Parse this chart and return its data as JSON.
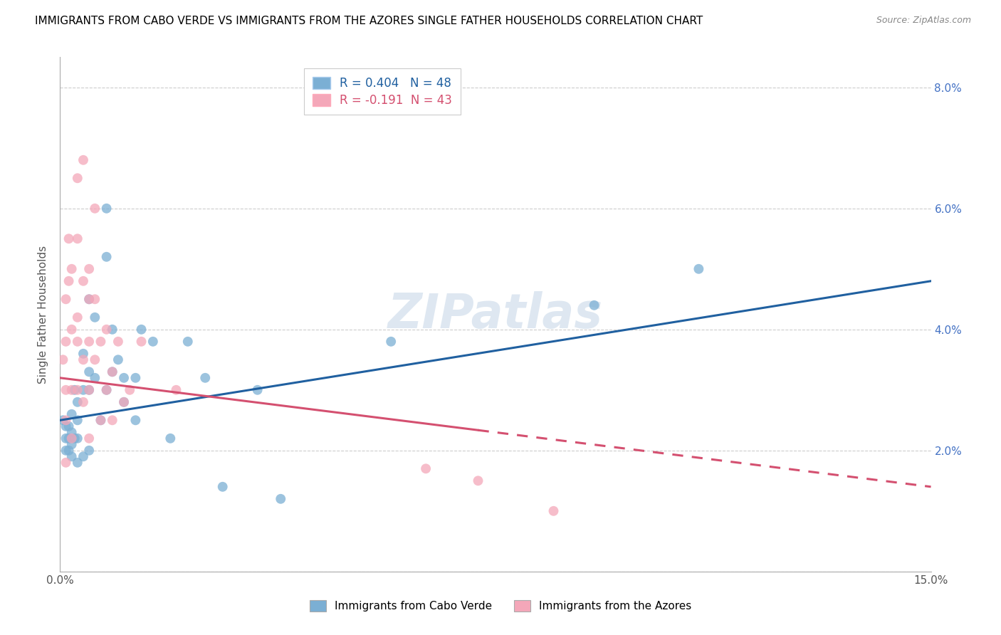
{
  "title": "IMMIGRANTS FROM CABO VERDE VS IMMIGRANTS FROM THE AZORES SINGLE FATHER HOUSEHOLDS CORRELATION CHART",
  "source": "Source: ZipAtlas.com",
  "ylabel": "Single Father Households",
  "x_min": 0.0,
  "x_max": 0.15,
  "y_min": 0.0,
  "y_max": 0.085,
  "x_ticks": [
    0.0,
    0.03,
    0.06,
    0.09,
    0.12,
    0.15
  ],
  "x_tick_labels": [
    "0.0%",
    "",
    "",
    "",
    "",
    "15.0%"
  ],
  "y_ticks": [
    0.0,
    0.02,
    0.04,
    0.06,
    0.08
  ],
  "y_tick_labels": [
    "",
    "2.0%",
    "4.0%",
    "6.0%",
    "8.0%"
  ],
  "cabo_verde_color": "#7bafd4",
  "azores_color": "#f4a7b9",
  "cabo_verde_line_color": "#2060a0",
  "azores_line_color": "#d45070",
  "cabo_verde_R": 0.404,
  "cabo_verde_N": 48,
  "azores_R": -0.191,
  "azores_N": 43,
  "legend_label_1": "Immigrants from Cabo Verde",
  "legend_label_2": "Immigrants from the Azores",
  "watermark": "ZIPatlas",
  "cabo_verde_line": [
    0.0,
    0.025,
    0.15,
    0.048
  ],
  "azores_line_solid_end": 0.072,
  "azores_line": [
    0.0,
    0.032,
    0.15,
    0.014
  ],
  "cabo_verde_x": [
    0.0005,
    0.001,
    0.001,
    0.001,
    0.0015,
    0.0015,
    0.0015,
    0.002,
    0.002,
    0.002,
    0.002,
    0.0025,
    0.0025,
    0.003,
    0.003,
    0.003,
    0.003,
    0.004,
    0.004,
    0.004,
    0.005,
    0.005,
    0.005,
    0.005,
    0.006,
    0.006,
    0.007,
    0.008,
    0.008,
    0.008,
    0.009,
    0.009,
    0.01,
    0.011,
    0.011,
    0.013,
    0.013,
    0.014,
    0.016,
    0.019,
    0.022,
    0.025,
    0.028,
    0.034,
    0.038,
    0.057,
    0.092,
    0.11
  ],
  "cabo_verde_y": [
    0.025,
    0.024,
    0.022,
    0.02,
    0.024,
    0.022,
    0.02,
    0.026,
    0.023,
    0.021,
    0.019,
    0.03,
    0.022,
    0.028,
    0.025,
    0.022,
    0.018,
    0.036,
    0.03,
    0.019,
    0.045,
    0.033,
    0.03,
    0.02,
    0.042,
    0.032,
    0.025,
    0.06,
    0.052,
    0.03,
    0.04,
    0.033,
    0.035,
    0.032,
    0.028,
    0.032,
    0.025,
    0.04,
    0.038,
    0.022,
    0.038,
    0.032,
    0.014,
    0.03,
    0.012,
    0.038,
    0.044,
    0.05
  ],
  "azores_x": [
    0.0005,
    0.001,
    0.001,
    0.001,
    0.001,
    0.001,
    0.0015,
    0.0015,
    0.002,
    0.002,
    0.002,
    0.002,
    0.003,
    0.003,
    0.003,
    0.003,
    0.003,
    0.004,
    0.004,
    0.004,
    0.004,
    0.005,
    0.005,
    0.005,
    0.005,
    0.005,
    0.006,
    0.006,
    0.006,
    0.007,
    0.007,
    0.008,
    0.008,
    0.009,
    0.009,
    0.01,
    0.011,
    0.012,
    0.014,
    0.02,
    0.063,
    0.072,
    0.085
  ],
  "azores_y": [
    0.035,
    0.045,
    0.038,
    0.03,
    0.025,
    0.018,
    0.055,
    0.048,
    0.05,
    0.04,
    0.03,
    0.022,
    0.065,
    0.055,
    0.042,
    0.038,
    0.03,
    0.068,
    0.048,
    0.035,
    0.028,
    0.05,
    0.045,
    0.038,
    0.03,
    0.022,
    0.06,
    0.045,
    0.035,
    0.038,
    0.025,
    0.04,
    0.03,
    0.033,
    0.025,
    0.038,
    0.028,
    0.03,
    0.038,
    0.03,
    0.017,
    0.015,
    0.01
  ]
}
